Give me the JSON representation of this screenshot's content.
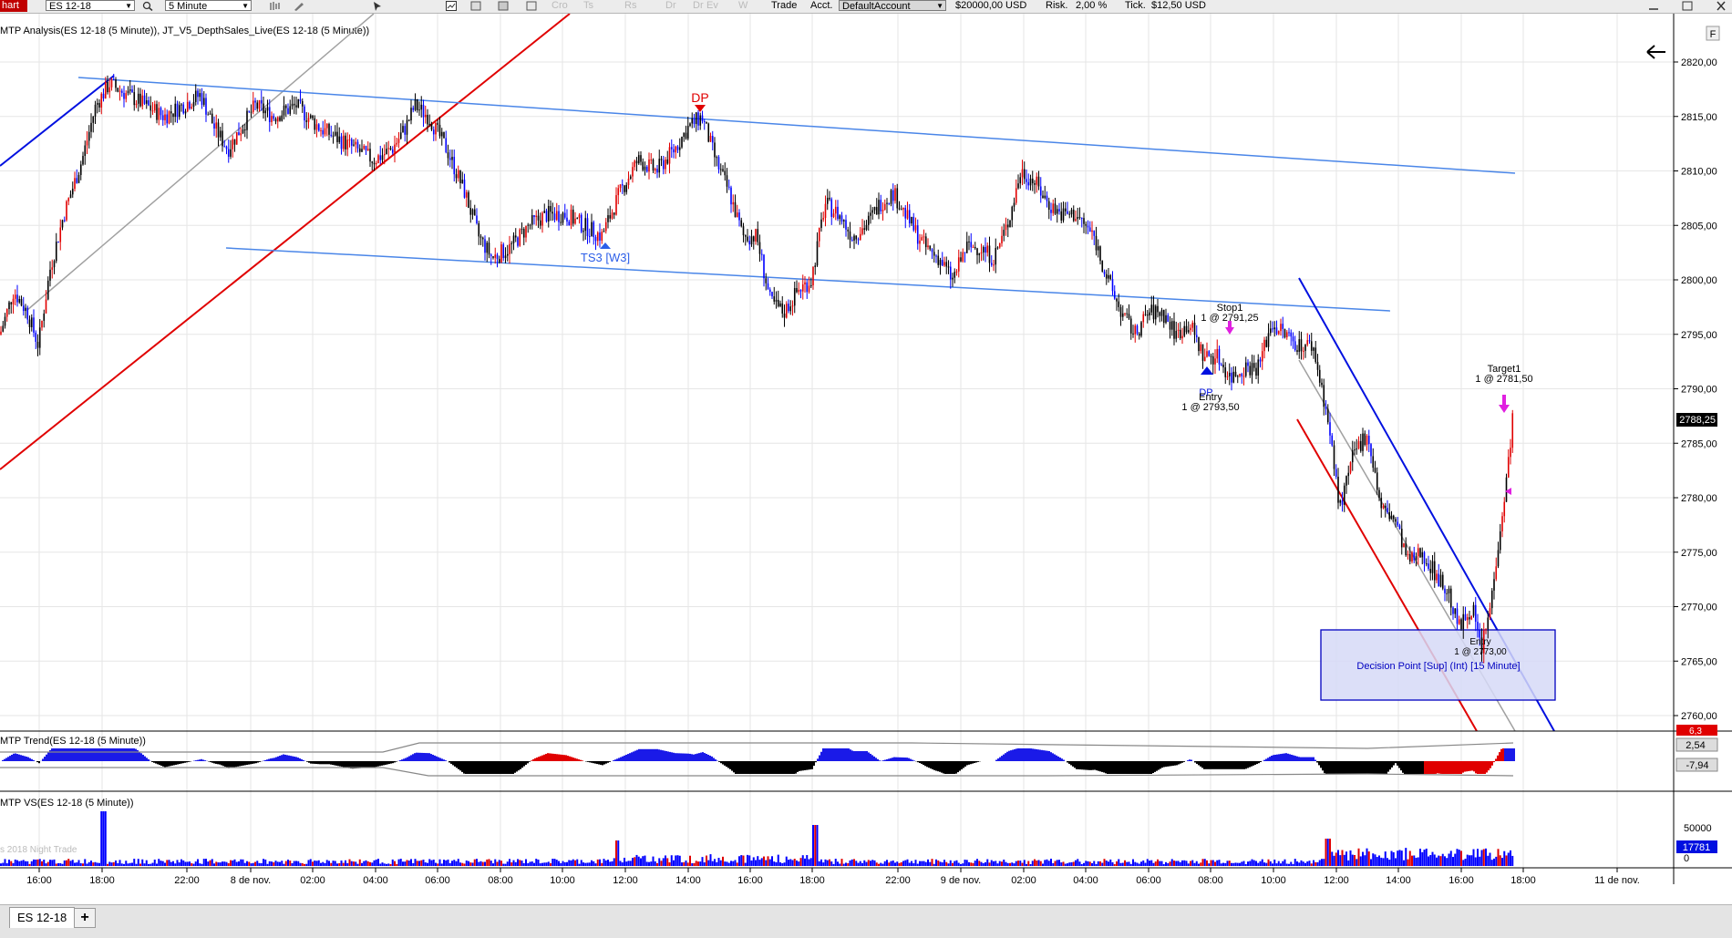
{
  "toolbar": {
    "app_tab": "hart",
    "instrument": "ES 12-18",
    "interval": "5 Minute",
    "trade_label": "Trade",
    "acct_label": "Acct.",
    "account": "DefaultAccount",
    "cash": "$20000,00 USD",
    "risk_label": "Risk.",
    "risk_value": "2,00 %",
    "tick_label": "Tick.",
    "tick_value": "$12,50 USD",
    "faded_buttons": [
      "Cro",
      "Ts",
      "Rs",
      "Dr",
      "Dr",
      "Ev",
      "W"
    ]
  },
  "chart": {
    "main_title": "MTP Analysis(ES 12-18 (5 Minute)), JT_V5_DepthSales_Live(ES 12-18 (5 Minute))",
    "f_button": "F",
    "price_ticks": [
      "2820,00",
      "2815,00",
      "2810,00",
      "2805,00",
      "2800,00",
      "2795,00",
      "2790,00",
      "2785,00",
      "2780,00",
      "2775,00",
      "2770,00",
      "2765,00",
      "2760,00"
    ],
    "last_price": "2788,25",
    "annotations": {
      "dp": "DP",
      "ts3": "TS3 [W3]",
      "stop_title": "Stop1",
      "stop_detail": "1 @ 2791,25",
      "entry_title": "Entry",
      "entry_detail": "1 @ 2793,50",
      "entry_marker": "DP",
      "target_title": "Target1",
      "target_detail": "1 @ 2781,50",
      "entry2_title": "Entry",
      "entry2_detail": "1 @ 2773,00",
      "decision_point": "Decision Point [Sup] (Int) [15 Minute]"
    },
    "trend_panel": {
      "title": "MTP Trend(ES 12-18 (5 Minute))",
      "value_top": "6,3",
      "value_mid": "2,54",
      "value_low": "-7,94"
    },
    "volume_panel": {
      "title": "MTP VS(ES 12-18 (5 Minute))",
      "faint_label": "s 2018 Night Trade",
      "tick_50000": "50000",
      "tick_0": "0",
      "last_volume": "17781"
    },
    "time_ticks": [
      "16:00",
      "18:00",
      "22:00",
      "8 de nov.",
      "02:00",
      "04:00",
      "06:00",
      "08:00",
      "10:00",
      "12:00",
      "14:00",
      "16:00",
      "18:00",
      "22:00",
      "9 de nov.",
      "02:00",
      "04:00",
      "06:00",
      "08:00",
      "10:00",
      "12:00",
      "14:00",
      "16:00",
      "18:00",
      "11 de nov."
    ]
  },
  "colors": {
    "up_candle": "#e00000",
    "down_candle": "#0000ff",
    "channel": "#4a86e8",
    "trendline_red": "#e00000",
    "trendline_blue": "#0010e0",
    "trendline_gray": "#a0a0a0",
    "decision_box_fill": "#d6d9f7",
    "decision_box_border": "#0000c0"
  },
  "tabs": [
    {
      "label": "ES 12-18"
    }
  ]
}
